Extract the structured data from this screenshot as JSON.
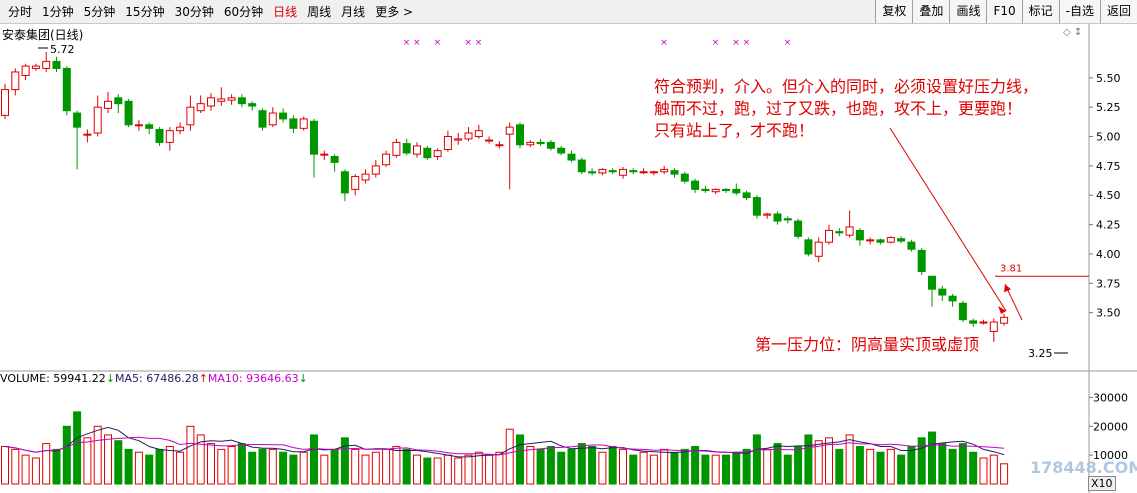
{
  "toolbar": {
    "tabs": [
      {
        "label": "分时",
        "active": false
      },
      {
        "label": "1分钟",
        "active": false
      },
      {
        "label": "5分钟",
        "active": false
      },
      {
        "label": "15分钟",
        "active": false
      },
      {
        "label": "30分钟",
        "active": false
      },
      {
        "label": "60分钟",
        "active": false
      },
      {
        "label": "日线",
        "active": true
      },
      {
        "label": "周线",
        "active": false
      },
      {
        "label": "月线",
        "active": false
      },
      {
        "label": "更多 >",
        "active": false
      }
    ],
    "buttons": [
      "复权",
      "叠加",
      "画线",
      "F10",
      "标记",
      "-自选",
      "返回"
    ]
  },
  "chart": {
    "stock_title": "安泰集团(日线)",
    "high_label": "5.72",
    "low_label": "3.25",
    "level_label": "3.81",
    "price_ticks": [
      "5.50",
      "5.25",
      "5.00",
      "4.75",
      "4.50",
      "4.25",
      "4.00",
      "3.75",
      "3.50"
    ],
    "volume_ticks": [
      "30000",
      "20000",
      "10000"
    ],
    "zoom_label": "X10"
  },
  "annotation": {
    "lines": [
      "符合预判，介入。但介入的同时，必须设置好压力线，",
      "触而不过，跑，过了又跌，也跑，攻不上，更要跑！",
      "只有站上了，才不跑！"
    ],
    "pressure_note": "第一压力位：阴高量实顶或虚顶"
  },
  "volume_legend": {
    "volume": "VOLUME: 59941.22",
    "ma5": "MA5: 67486.28",
    "ma10": "MA10: 93646.63"
  },
  "watermark": "178448.COM",
  "colors": {
    "up": "#e00000",
    "down": "#009600",
    "ma5_line": "#1e1e64",
    "ma10_line": "#c800c8",
    "annotation": "#e00000"
  },
  "chart_data": {
    "type": "candlestick",
    "ylim_price": [
      3.25,
      5.72
    ],
    "ylim_volume": [
      0,
      35000
    ],
    "candles": [
      {
        "o": 5.18,
        "c": 5.4,
        "h": 5.45,
        "l": 5.15,
        "v": 13000
      },
      {
        "o": 5.4,
        "c": 5.55,
        "h": 5.58,
        "l": 5.35,
        "v": 12000
      },
      {
        "o": 5.52,
        "c": 5.6,
        "h": 5.62,
        "l": 5.48,
        "v": 10000
      },
      {
        "o": 5.58,
        "c": 5.6,
        "h": 5.62,
        "l": 5.56,
        "v": 9000
      },
      {
        "o": 5.58,
        "c": 5.64,
        "h": 5.72,
        "l": 5.55,
        "v": 14000
      },
      {
        "o": 5.64,
        "c": 5.58,
        "h": 5.68,
        "l": 5.55,
        "v": 12000
      },
      {
        "o": 5.58,
        "c": 5.22,
        "h": 5.6,
        "l": 5.18,
        "v": 20000
      },
      {
        "o": 5.2,
        "c": 5.08,
        "h": 5.22,
        "l": 4.72,
        "v": 25000
      },
      {
        "o": 5.02,
        "c": 5.02,
        "h": 5.06,
        "l": 4.95,
        "v": 16000
      },
      {
        "o": 5.03,
        "c": 5.25,
        "h": 5.35,
        "l": 5.0,
        "v": 20000
      },
      {
        "o": 5.24,
        "c": 5.3,
        "h": 5.38,
        "l": 5.2,
        "v": 17000
      },
      {
        "o": 5.33,
        "c": 5.28,
        "h": 5.36,
        "l": 5.2,
        "v": 15000
      },
      {
        "o": 5.3,
        "c": 5.1,
        "h": 5.32,
        "l": 5.08,
        "v": 12000
      },
      {
        "o": 5.1,
        "c": 5.1,
        "h": 5.14,
        "l": 5.05,
        "v": 11000
      },
      {
        "o": 5.1,
        "c": 5.07,
        "h": 5.12,
        "l": 5.02,
        "v": 10000
      },
      {
        "o": 5.06,
        "c": 4.95,
        "h": 5.08,
        "l": 4.92,
        "v": 12000
      },
      {
        "o": 4.95,
        "c": 5.05,
        "h": 5.08,
        "l": 4.88,
        "v": 13000
      },
      {
        "o": 5.05,
        "c": 5.08,
        "h": 5.12,
        "l": 5.02,
        "v": 11000
      },
      {
        "o": 5.1,
        "c": 5.25,
        "h": 5.35,
        "l": 5.05,
        "v": 20000
      },
      {
        "o": 5.22,
        "c": 5.28,
        "h": 5.35,
        "l": 5.2,
        "v": 17000
      },
      {
        "o": 5.26,
        "c": 5.33,
        "h": 5.37,
        "l": 5.22,
        "v": 14000
      },
      {
        "o": 5.3,
        "c": 5.32,
        "h": 5.42,
        "l": 5.26,
        "v": 12000
      },
      {
        "o": 5.31,
        "c": 5.33,
        "h": 5.36,
        "l": 5.27,
        "v": 13000
      },
      {
        "o": 5.33,
        "c": 5.28,
        "h": 5.36,
        "l": 5.25,
        "v": 14000
      },
      {
        "o": 5.28,
        "c": 5.26,
        "h": 5.3,
        "l": 5.22,
        "v": 11000
      },
      {
        "o": 5.22,
        "c": 5.08,
        "h": 5.24,
        "l": 5.05,
        "v": 12000
      },
      {
        "o": 5.1,
        "c": 5.2,
        "h": 5.25,
        "l": 5.08,
        "v": 12000
      },
      {
        "o": 5.2,
        "c": 5.15,
        "h": 5.24,
        "l": 5.12,
        "v": 11000
      },
      {
        "o": 5.15,
        "c": 5.07,
        "h": 5.18,
        "l": 5.03,
        "v": 10000
      },
      {
        "o": 5.07,
        "c": 5.15,
        "h": 5.17,
        "l": 5.05,
        "v": 11000
      },
      {
        "o": 5.13,
        "c": 4.85,
        "h": 5.15,
        "l": 4.65,
        "v": 17000
      },
      {
        "o": 4.85,
        "c": 4.85,
        "h": 4.88,
        "l": 4.8,
        "v": 10000
      },
      {
        "o": 4.83,
        "c": 4.78,
        "h": 4.85,
        "l": 4.7,
        "v": 12000
      },
      {
        "o": 4.7,
        "c": 4.52,
        "h": 4.72,
        "l": 4.45,
        "v": 16000
      },
      {
        "o": 4.55,
        "c": 4.66,
        "h": 4.68,
        "l": 4.5,
        "v": 12000
      },
      {
        "o": 4.63,
        "c": 4.68,
        "h": 4.72,
        "l": 4.6,
        "v": 10000
      },
      {
        "o": 4.68,
        "c": 4.75,
        "h": 4.8,
        "l": 4.65,
        "v": 11000
      },
      {
        "o": 4.76,
        "c": 4.85,
        "h": 4.88,
        "l": 4.74,
        "v": 12000
      },
      {
        "o": 4.84,
        "c": 4.95,
        "h": 4.98,
        "l": 4.82,
        "v": 13000
      },
      {
        "o": 4.94,
        "c": 4.86,
        "h": 4.98,
        "l": 4.84,
        "v": 12000
      },
      {
        "o": 4.85,
        "c": 4.92,
        "h": 4.95,
        "l": 4.82,
        "v": 10000
      },
      {
        "o": 4.9,
        "c": 4.82,
        "h": 4.92,
        "l": 4.8,
        "v": 9000
      },
      {
        "o": 4.83,
        "c": 4.88,
        "h": 4.9,
        "l": 4.8,
        "v": 9000
      },
      {
        "o": 4.89,
        "c": 5.0,
        "h": 5.05,
        "l": 4.87,
        "v": 10000
      },
      {
        "o": 4.97,
        "c": 4.98,
        "h": 5.03,
        "l": 4.93,
        "v": 9000
      },
      {
        "o": 4.98,
        "c": 5.03,
        "h": 5.08,
        "l": 4.96,
        "v": 10000
      },
      {
        "o": 5.0,
        "c": 5.05,
        "h": 5.1,
        "l": 4.98,
        "v": 11000
      },
      {
        "o": 4.97,
        "c": 4.97,
        "h": 5.0,
        "l": 4.94,
        "v": 10000
      },
      {
        "o": 4.93,
        "c": 4.93,
        "h": 4.96,
        "l": 4.9,
        "v": 11000
      },
      {
        "o": 5.02,
        "c": 5.08,
        "h": 5.12,
        "l": 4.55,
        "v": 19000
      },
      {
        "o": 5.1,
        "c": 4.93,
        "h": 5.12,
        "l": 4.9,
        "v": 17000
      },
      {
        "o": 4.93,
        "c": 4.95,
        "h": 4.97,
        "l": 4.91,
        "v": 13000
      },
      {
        "o": 4.95,
        "c": 4.94,
        "h": 4.98,
        "l": 4.92,
        "v": 12000
      },
      {
        "o": 4.95,
        "c": 4.9,
        "h": 4.97,
        "l": 4.88,
        "v": 13000
      },
      {
        "o": 4.9,
        "c": 4.86,
        "h": 4.92,
        "l": 4.84,
        "v": 11000
      },
      {
        "o": 4.85,
        "c": 4.8,
        "h": 4.88,
        "l": 4.78,
        "v": 12000
      },
      {
        "o": 4.8,
        "c": 4.7,
        "h": 4.82,
        "l": 4.68,
        "v": 14000
      },
      {
        "o": 4.7,
        "c": 4.69,
        "h": 4.73,
        "l": 4.67,
        "v": 13000
      },
      {
        "o": 4.69,
        "c": 4.72,
        "h": 4.73,
        "l": 4.67,
        "v": 11000
      },
      {
        "o": 4.71,
        "c": 4.7,
        "h": 4.73,
        "l": 4.68,
        "v": 13000
      },
      {
        "o": 4.67,
        "c": 4.72,
        "h": 4.74,
        "l": 4.64,
        "v": 12000
      },
      {
        "o": 4.71,
        "c": 4.7,
        "h": 4.73,
        "l": 4.68,
        "v": 10000
      },
      {
        "o": 4.7,
        "c": 4.7,
        "h": 4.73,
        "l": 4.68,
        "v": 11000
      },
      {
        "o": 4.7,
        "c": 4.7,
        "h": 4.71,
        "l": 4.67,
        "v": 10000
      },
      {
        "o": 4.7,
        "c": 4.72,
        "h": 4.75,
        "l": 4.68,
        "v": 12000
      },
      {
        "o": 4.71,
        "c": 4.68,
        "h": 4.73,
        "l": 4.65,
        "v": 11000
      },
      {
        "o": 4.68,
        "c": 4.62,
        "h": 4.7,
        "l": 4.6,
        "v": 12000
      },
      {
        "o": 4.62,
        "c": 4.55,
        "h": 4.64,
        "l": 4.52,
        "v": 13000
      },
      {
        "o": 4.55,
        "c": 4.54,
        "h": 4.58,
        "l": 4.52,
        "v": 10000
      },
      {
        "o": 4.53,
        "c": 4.55,
        "h": 4.56,
        "l": 4.51,
        "v": 10000
      },
      {
        "o": 4.55,
        "c": 4.54,
        "h": 4.56,
        "l": 4.52,
        "v": 10000
      },
      {
        "o": 4.55,
        "c": 4.52,
        "h": 4.6,
        "l": 4.5,
        "v": 11000
      },
      {
        "o": 4.52,
        "c": 4.48,
        "h": 4.54,
        "l": 4.46,
        "v": 12000
      },
      {
        "o": 4.48,
        "c": 4.33,
        "h": 4.5,
        "l": 4.3,
        "v": 17000
      },
      {
        "o": 4.33,
        "c": 4.34,
        "h": 4.35,
        "l": 4.3,
        "v": 12000
      },
      {
        "o": 4.34,
        "c": 4.28,
        "h": 4.36,
        "l": 4.25,
        "v": 14000
      },
      {
        "o": 4.3,
        "c": 4.29,
        "h": 4.32,
        "l": 4.26,
        "v": 10000
      },
      {
        "o": 4.28,
        "c": 4.15,
        "h": 4.3,
        "l": 4.13,
        "v": 13000
      },
      {
        "o": 4.12,
        "c": 4.0,
        "h": 4.14,
        "l": 3.98,
        "v": 17000
      },
      {
        "o": 3.98,
        "c": 4.1,
        "h": 4.14,
        "l": 3.93,
        "v": 15000
      },
      {
        "o": 4.1,
        "c": 4.2,
        "h": 4.25,
        "l": 4.08,
        "v": 16000
      },
      {
        "o": 4.19,
        "c": 4.18,
        "h": 4.22,
        "l": 4.15,
        "v": 12000
      },
      {
        "o": 4.16,
        "c": 4.23,
        "h": 4.37,
        "l": 4.14,
        "v": 17000
      },
      {
        "o": 4.2,
        "c": 4.12,
        "h": 4.22,
        "l": 4.07,
        "v": 13000
      },
      {
        "o": 4.12,
        "c": 4.12,
        "h": 4.14,
        "l": 4.08,
        "v": 12000
      },
      {
        "o": 4.12,
        "c": 4.1,
        "h": 4.13,
        "l": 4.08,
        "v": 11000
      },
      {
        "o": 4.1,
        "c": 4.14,
        "h": 4.15,
        "l": 4.09,
        "v": 12000
      },
      {
        "o": 4.13,
        "c": 4.11,
        "h": 4.15,
        "l": 4.09,
        "v": 10000
      },
      {
        "o": 4.1,
        "c": 4.04,
        "h": 4.12,
        "l": 4.02,
        "v": 13000
      },
      {
        "o": 4.03,
        "c": 3.85,
        "h": 4.05,
        "l": 3.82,
        "v": 16000
      },
      {
        "o": 3.81,
        "c": 3.7,
        "h": 3.81,
        "l": 3.55,
        "v": 18000
      },
      {
        "o": 3.7,
        "c": 3.65,
        "h": 3.73,
        "l": 3.6,
        "v": 14000
      },
      {
        "o": 3.64,
        "c": 3.6,
        "h": 3.66,
        "l": 3.55,
        "v": 12000
      },
      {
        "o": 3.58,
        "c": 3.44,
        "h": 3.6,
        "l": 3.42,
        "v": 14000
      },
      {
        "o": 3.43,
        "c": 3.41,
        "h": 3.45,
        "l": 3.38,
        "v": 11000
      },
      {
        "o": 3.42,
        "c": 3.42,
        "h": 3.44,
        "l": 3.4,
        "v": 9000
      },
      {
        "o": 3.34,
        "c": 3.42,
        "h": 3.45,
        "l": 3.25,
        "v": 10000
      },
      {
        "o": 3.41,
        "c": 3.46,
        "h": 3.49,
        "l": 3.39,
        "v": 7000
      }
    ],
    "resistance_price": 3.81,
    "signal_marker_candles": [
      39,
      40,
      42,
      45,
      46,
      64,
      69,
      71,
      72,
      76
    ]
  }
}
